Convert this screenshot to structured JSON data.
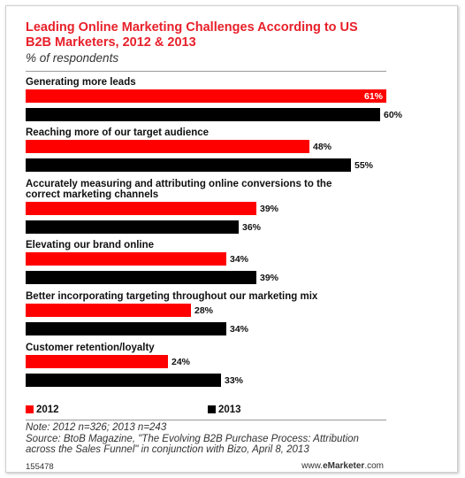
{
  "header": {
    "title_line1": "Leading Online Marketing Challenges According to US",
    "title_line2": "B2B Marketers, 2012 & 2013",
    "subtitle": "% of respondents"
  },
  "chart_data": {
    "type": "bar",
    "orientation": "horizontal",
    "categories": [
      [
        "Generating more leads"
      ],
      [
        "Reaching more of our target audience"
      ],
      [
        "Accurately measuring and attributing online conversions to the",
        "correct marketing channels"
      ],
      [
        "Elevating our brand online"
      ],
      [
        "Better incorporating targeting throughout our marketing mix"
      ],
      [
        "Customer retention/loyalty"
      ]
    ],
    "series": [
      {
        "name": "2012",
        "color": "#ff0000",
        "values": [
          61,
          48,
          39,
          34,
          28,
          24
        ]
      },
      {
        "name": "2013",
        "color": "#000000",
        "values": [
          60,
          55,
          36,
          39,
          34,
          33
        ]
      }
    ],
    "value_suffix": "%",
    "xlim": [
      0,
      61
    ],
    "grid": false,
    "legend_placement": "bottom-left"
  },
  "notes": {
    "line1": "Note: 2012 n=326; 2013 n=243",
    "line2": "Source: BtoB Magazine, \"The Evolving B2B Purchase Process: Attribution",
    "line3": "across the Sales Funnel\" in conjunction with Bizo, April 8, 2013"
  },
  "footer": {
    "chart_id": "155478",
    "site_prefix": "www.",
    "site_brand": "eMarketer",
    "site_suffix": ".com"
  }
}
